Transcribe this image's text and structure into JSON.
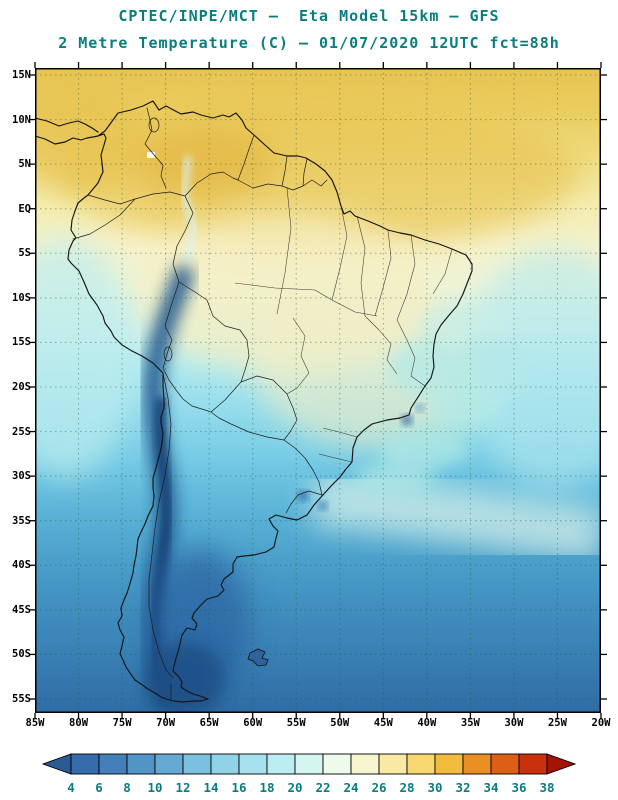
{
  "header": {
    "line1": "CPTEC/INPE/MCT —  Eta Model 15km — GFS",
    "line2": "2 Metre Temperature (C) — 01/07/2020 12UTC fct=88h",
    "text_color": "#0a7e7e"
  },
  "map": {
    "lat_labels": [
      "15N",
      "10N",
      "5N",
      "EQ",
      "5S",
      "10S",
      "15S",
      "20S",
      "25S",
      "30S",
      "35S",
      "40S",
      "45S",
      "50S",
      "55S"
    ],
    "lon_labels": [
      "85W",
      "80W",
      "75W",
      "70W",
      "65W",
      "60W",
      "55W",
      "50W",
      "45W",
      "40W",
      "35W",
      "30W",
      "25W",
      "20W"
    ]
  },
  "colorbar": {
    "tick_labels": [
      "4",
      "6",
      "8",
      "10",
      "12",
      "14",
      "16",
      "18",
      "20",
      "22",
      "24",
      "26",
      "28",
      "30",
      "32",
      "34",
      "36",
      "38"
    ],
    "segment_colors": [
      "#356cab",
      "#4380b9",
      "#5394c6",
      "#66aad3",
      "#7bc0de",
      "#90d2e7",
      "#a6e1ed",
      "#bcedf1",
      "#d5f5f1",
      "#edfaec",
      "#f8f6cf",
      "#f9e9a4",
      "#f7d96f",
      "#f2bc3e",
      "#ea8f24",
      "#dd5f16",
      "#c9300c"
    ],
    "left_arrow_color": "#2a5b92",
    "right_arrow_color": "#a31405",
    "label_color": "#0a7e7e"
  }
}
